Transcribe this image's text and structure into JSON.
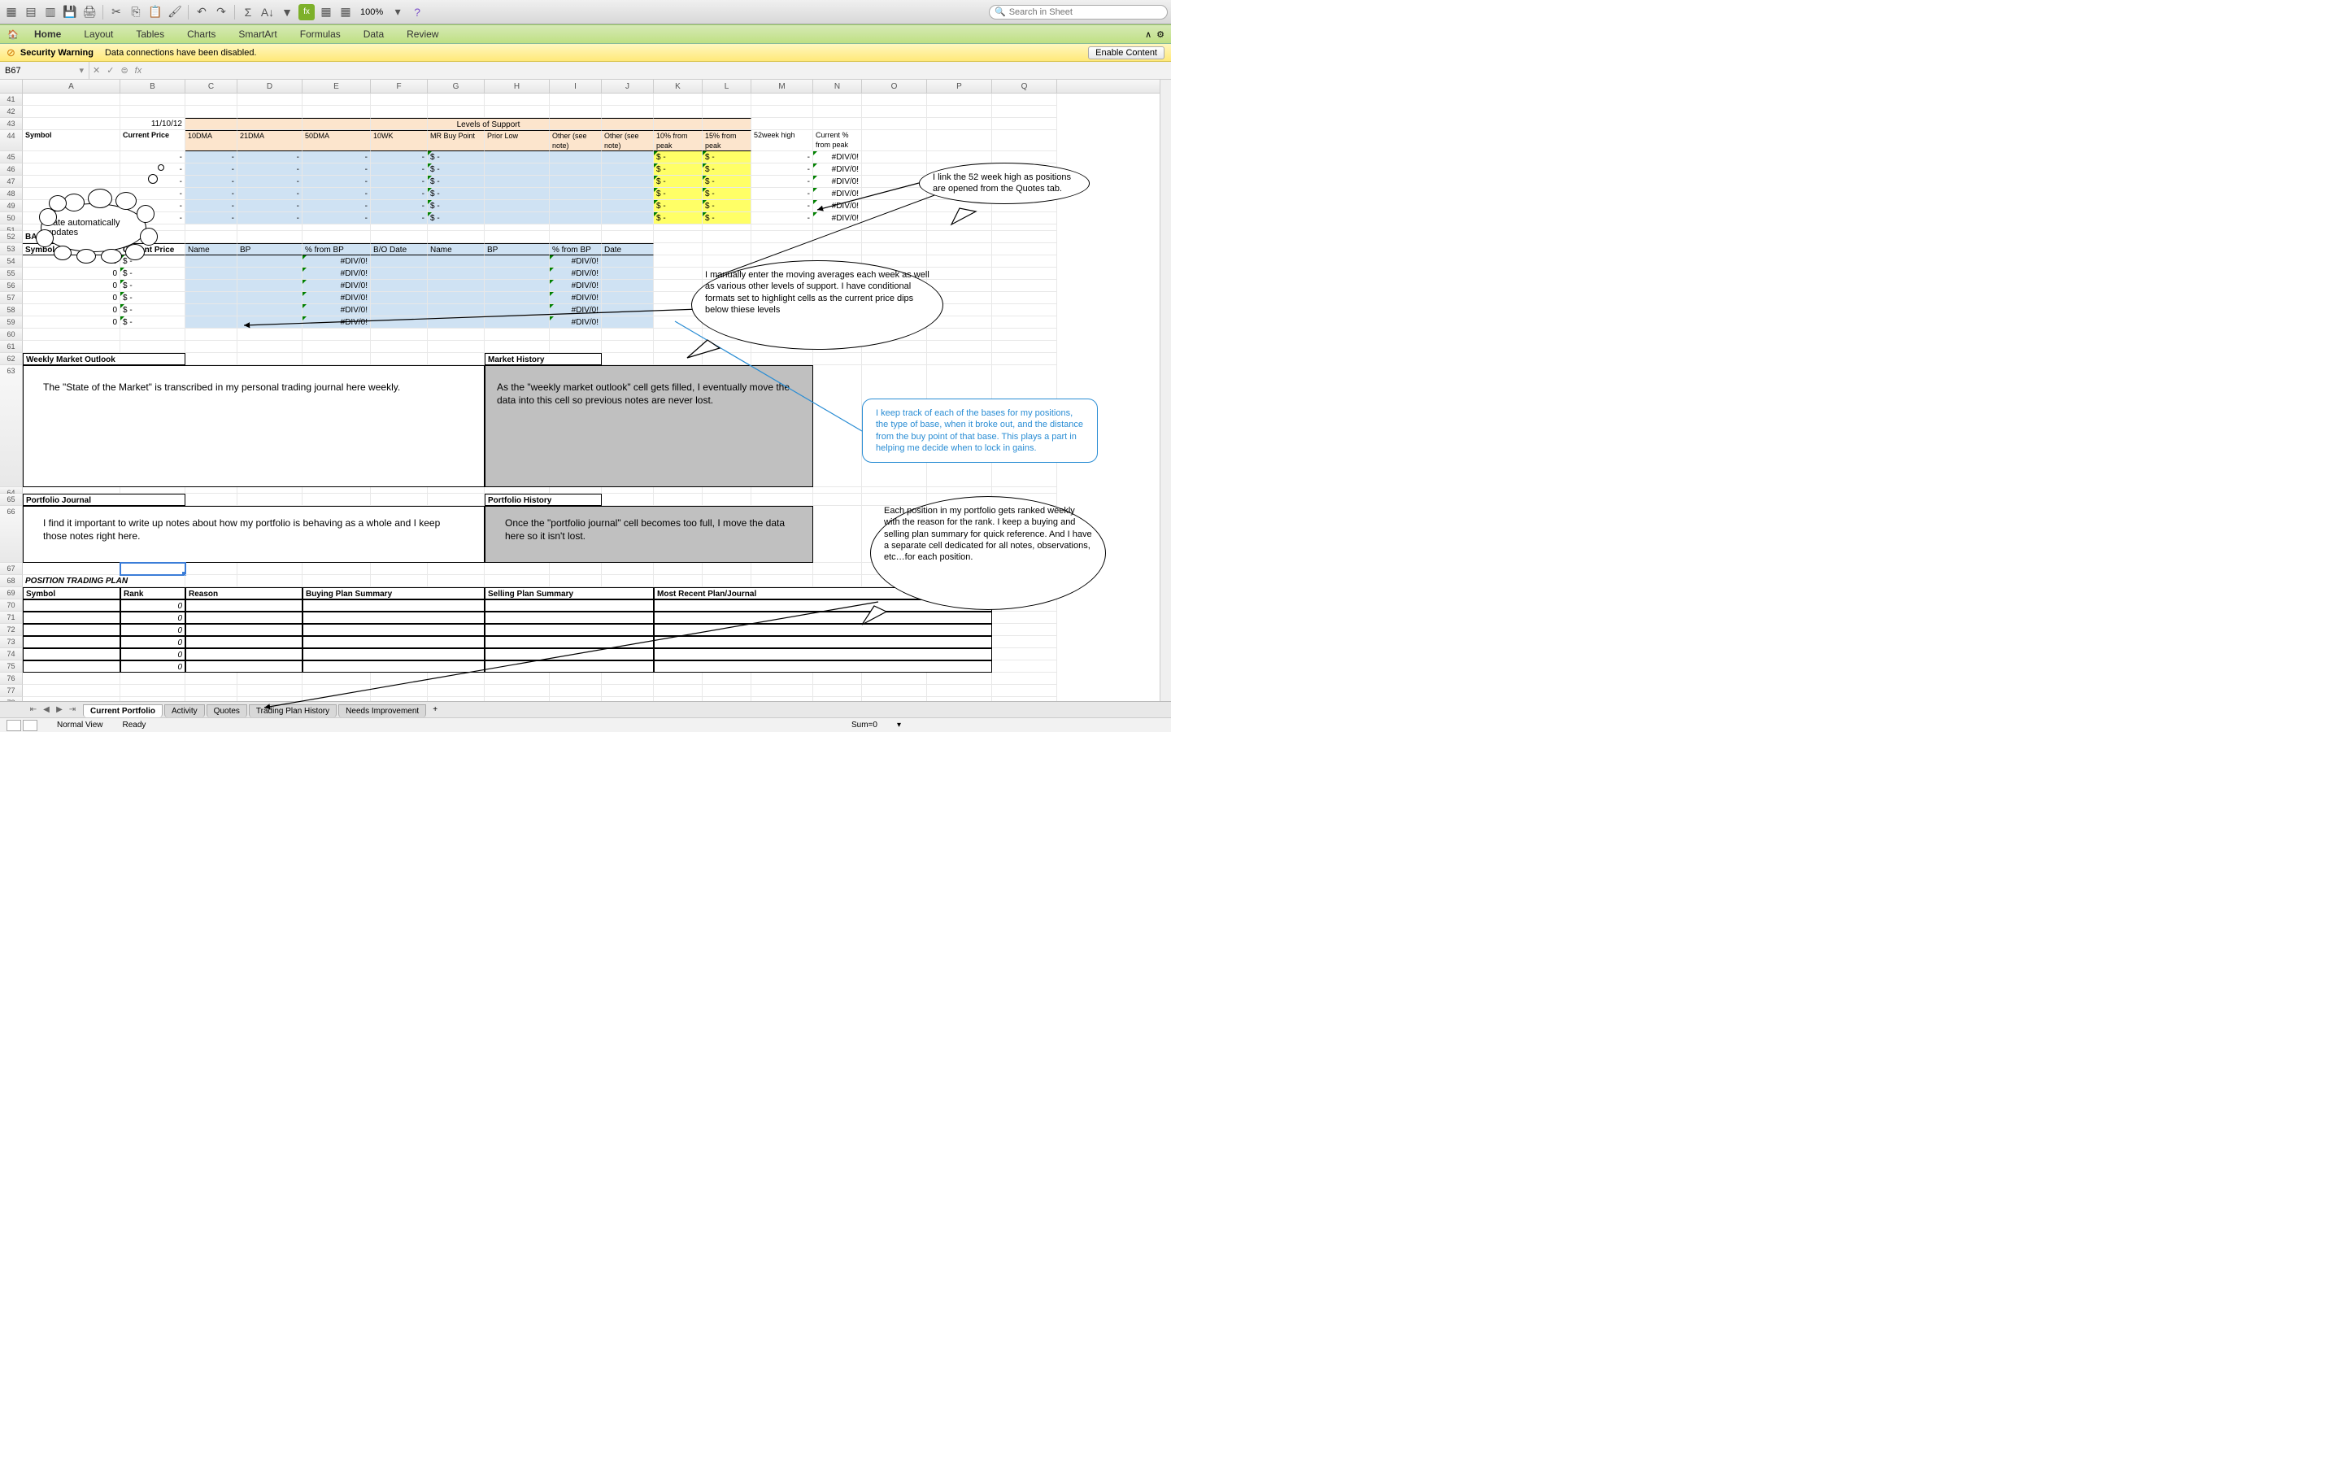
{
  "toolbar": {
    "zoom": "100%",
    "search_placeholder": "Search in Sheet"
  },
  "ribbon": {
    "tabs": [
      "Home",
      "Layout",
      "Tables",
      "Charts",
      "SmartArt",
      "Formulas",
      "Data",
      "Review"
    ],
    "active": 0
  },
  "security": {
    "title": "Security Warning",
    "msg": "Data connections have been disabled.",
    "button": "Enable Content"
  },
  "namebox": "B67",
  "columns": {
    "letters": [
      "A",
      "B",
      "C",
      "D",
      "E",
      "F",
      "G",
      "H",
      "I",
      "J",
      "K",
      "L",
      "M",
      "N",
      "O",
      "P",
      "Q"
    ],
    "widths": [
      120,
      80,
      64,
      80,
      84,
      70,
      70,
      80,
      64,
      64,
      60,
      60,
      76,
      60,
      80,
      80,
      80
    ]
  },
  "first_row": 41,
  "last_row": 80,
  "date_cell": "11/10/12",
  "levels_header": "Levels of Support",
  "support_headers": {
    "symbol": "Symbol",
    "cp": "Current Price",
    "dma10": "10DMA",
    "dma21": "21DMA",
    "dma50": "50DMA",
    "wk10": "10WK",
    "mrbp": "MR Buy Point",
    "plow": "Prior Low",
    "o1": "Other (see note)",
    "o2": "Other (see note)",
    "p10": "10% from peak",
    "p15": "15% from peak",
    "wk52": "52week high",
    "cpct": "Current % from peak"
  },
  "div0": "#DIV/0!",
  "dash": "-",
  "dollar": "$",
  "zero": "0",
  "bases": {
    "title": "BASES",
    "symbol": "Symbol",
    "cp": "Current Price",
    "name": "Name",
    "bp": "BP",
    "pct": "% from BP",
    "bodate": "B/O Date",
    "date": "Date"
  },
  "sections": {
    "wmo": "Weekly Market Outlook",
    "mh": "Market History",
    "pj": "Portfolio Journal",
    "ph": "Portfolio History",
    "ptp": "POSITION TRADING PLAN"
  },
  "notes": {
    "wmo_text": "The \"State of the Market\" is transcribed in my personal trading journal here weekly.",
    "mh_text": "As the \"weekly market outlook\" cell gets filled, I eventually move the data into this cell so previous notes are never lost.",
    "pj_text": "I find it important to write up notes about how my portfolio is behaving as a whole and I keep those notes right here.",
    "ph_text": "Once the \"portfolio journal\" cell becomes too full, I move the data here so it isn't lost."
  },
  "ptp_headers": {
    "symbol": "Symbol",
    "rank": "Rank",
    "reason": "Reason",
    "bps": "Buying Plan Summary",
    "sps": "Selling Plan Summary",
    "mrpj": "Most Recent Plan/Journal"
  },
  "callouts": {
    "date": "Date automatically updates",
    "wk52": "I link the 52 week high as positions are opened from the Quotes tab.",
    "ma": "I manually enter the moving averages each week as well as various other levels of support. I have conditional formats set to highlight cells as the current price dips below thiese levels",
    "bases": "I keep track of each of the bases for my positions, the type of base, when it broke out, and the distance from the buy point of that base. This plays a part in helping me decide when to lock in gains.",
    "rank": "Each position in my portfolio gets ranked weekly with the reason for the rank.  I keep a buying and selling plan summary for quick reference.  And I have a separate cell dedicated for all notes, observations, etc…for each position."
  },
  "sheets": {
    "tabs": [
      "Current Portfolio",
      "Activity",
      "Quotes",
      "Trading Plan History",
      "Needs Improvement"
    ],
    "active": 0
  },
  "status": {
    "view": "Normal View",
    "ready": "Ready",
    "sum": "Sum=0"
  },
  "colors": {
    "peach": "#fce5cd",
    "blue": "#cfe2f3",
    "yellow": "#ffff66",
    "gray": "#c0c0c0"
  }
}
